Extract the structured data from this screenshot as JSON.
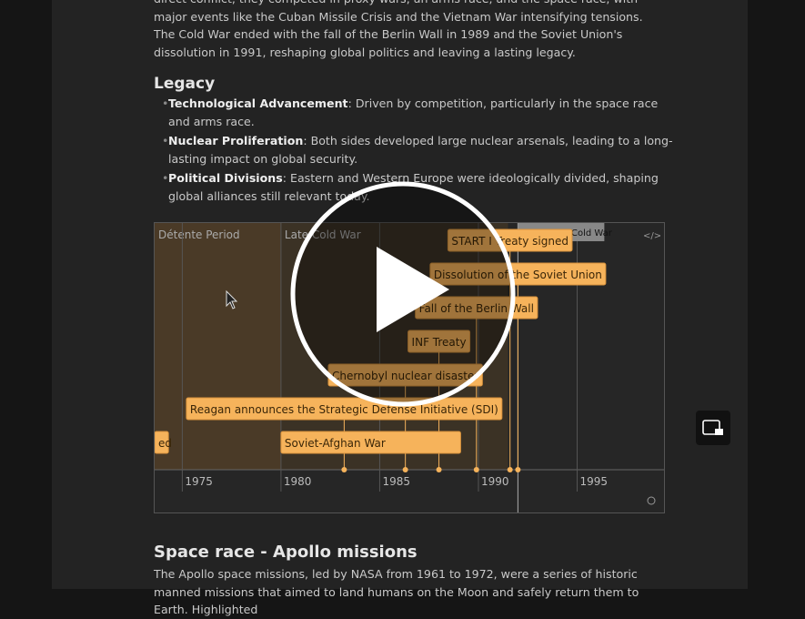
{
  "article": {
    "intro": "direct conflict, they competed in proxy wars, an arms race, and the space race, with major events like the Cuban Missile Crisis and the Vietnam War intensifying tensions. The Cold War ended with the fall of the Berlin Wall in 1989 and the Soviet Union's dissolution in 1991, reshaping global politics and leaving a lasting legacy.",
    "legacy": {
      "heading": "Legacy",
      "items": [
        {
          "term": "Technological Advancement",
          "text": ": Driven by competition, particularly in the space race and arms race."
        },
        {
          "term": "Nuclear Proliferation",
          "text": ": Both sides developed large nuclear arsenals, leading to a long-lasting impact on global security."
        },
        {
          "term": "Political Divisions",
          "text": ": Eastern and Western Europe were ideologically divided, shaping global alliances still relevant today."
        }
      ]
    },
    "next_section": {
      "heading": "Space race - Apollo missions",
      "text": "The Apollo space missions, led by NASA from 1961 to 1972, were a series of historic manned missions that aimed to land humans on the Moon and safely return them to Earth. Highlighted"
    }
  },
  "chart_data": {
    "type": "timeline",
    "xlim": [
      1973.6,
      1999.4
    ],
    "xticks": [
      1975,
      1980,
      1985,
      1990,
      1995
    ],
    "grid": true,
    "periods": [
      {
        "name": "Détente Period",
        "start": 1969,
        "end": 1980.0,
        "color": "#4a3a27"
      },
      {
        "name": "Late Cold War",
        "start": 1980.0,
        "end": 1991.5,
        "color": "#3b3225"
      }
    ],
    "events": [
      {
        "name": "START I Treaty signed",
        "start": 1991.6
      },
      {
        "name": "Dissolution of the Soviet Union",
        "start": 1992.0
      },
      {
        "name": "Fall of the Berlin Wall",
        "start": 1989.9
      },
      {
        "name": "INF Treaty",
        "start": 1988.0
      },
      {
        "name": "Chernobyl nuclear disaster",
        "start": 1986.3
      },
      {
        "name": "Reagan announces the Strategic Defense Initiative (SDI)",
        "start": 1983.2
      },
      {
        "name": "Soviet-Afghan War",
        "start": 1980.0,
        "end": 1989.1
      },
      {
        "name": "ed",
        "start": 1960,
        "end": 1974.3
      }
    ],
    "marker": {
      "name": "End of the Cold War",
      "value": 1992.0
    },
    "color": "#f6b35b"
  }
}
